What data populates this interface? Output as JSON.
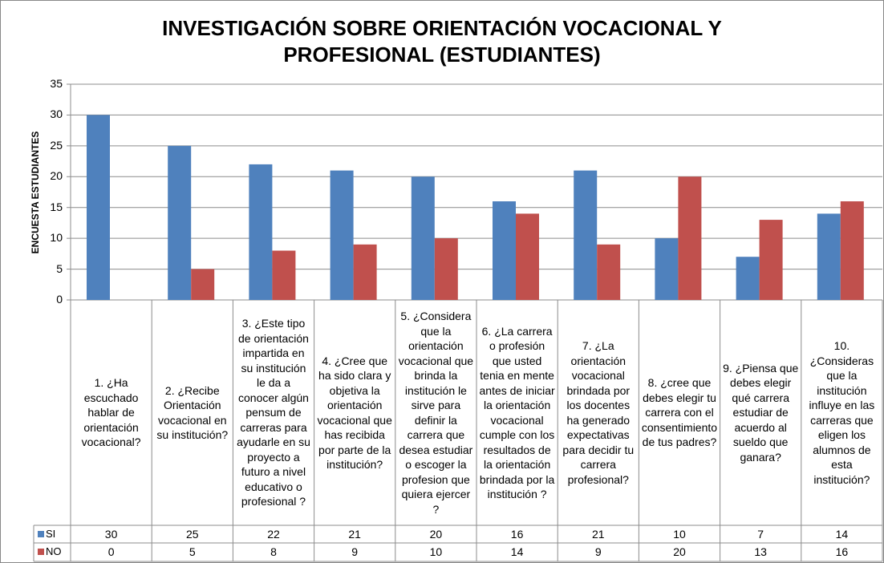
{
  "chart_data": {
    "type": "bar",
    "title": "INVESTIGACIÓN SOBRE ORIENTACIÓN VOCACIONAL Y PROFESIONAL (ESTUDIANTES)",
    "ylabel": "ENCUESTA ESTUDIANTES",
    "categories": [
      "1. ¿Ha escuchado hablar de orientación vocacional?",
      "2. ¿Recibe Orientación vocacional en su institución?",
      "3. ¿Este tipo de orientación impartida en su institución le da a conocer algún pensum de carreras para ayudarle en su proyecto a futuro a nivel educativo o profesional ?",
      "4. ¿Cree que ha sido clara y objetiva la orientación vocacional que has recibida por parte de la institución?",
      "5. ¿Considera que la orientación vocacional que brinda la institución le sirve para definir la carrera que desea estudiar o escoger la profesion que quiera ejercer ?",
      "6. ¿La carrera o profesión que usted tenia en mente antes de iniciar la orientación vocacional cumple con los resultados de la orientación brindada por la institución ?",
      "7. ¿La orientación vocacional brindada por los docentes ha generado expectativas para decidir tu carrera profesional?",
      "8. ¿cree que debes elegir tu carrera con el consentimiento de tus padres?",
      "9. ¿Piensa que debes elegir qué carrera estudiar de acuerdo al sueldo que ganara?",
      "10. ¿Consideras que la institución influye en las carreras que eligen los alumnos de esta institución?"
    ],
    "series": [
      {
        "name": "SI",
        "color": "#4f81bd",
        "values": [
          30,
          25,
          22,
          21,
          20,
          16,
          21,
          10,
          7,
          14
        ]
      },
      {
        "name": "NO",
        "color": "#c0504d",
        "values": [
          0,
          5,
          8,
          9,
          10,
          14,
          9,
          20,
          13,
          16
        ]
      }
    ],
    "ylim": [
      0,
      35
    ],
    "yticks": [
      0,
      5,
      10,
      15,
      20,
      25,
      30,
      35
    ],
    "grid": true
  }
}
